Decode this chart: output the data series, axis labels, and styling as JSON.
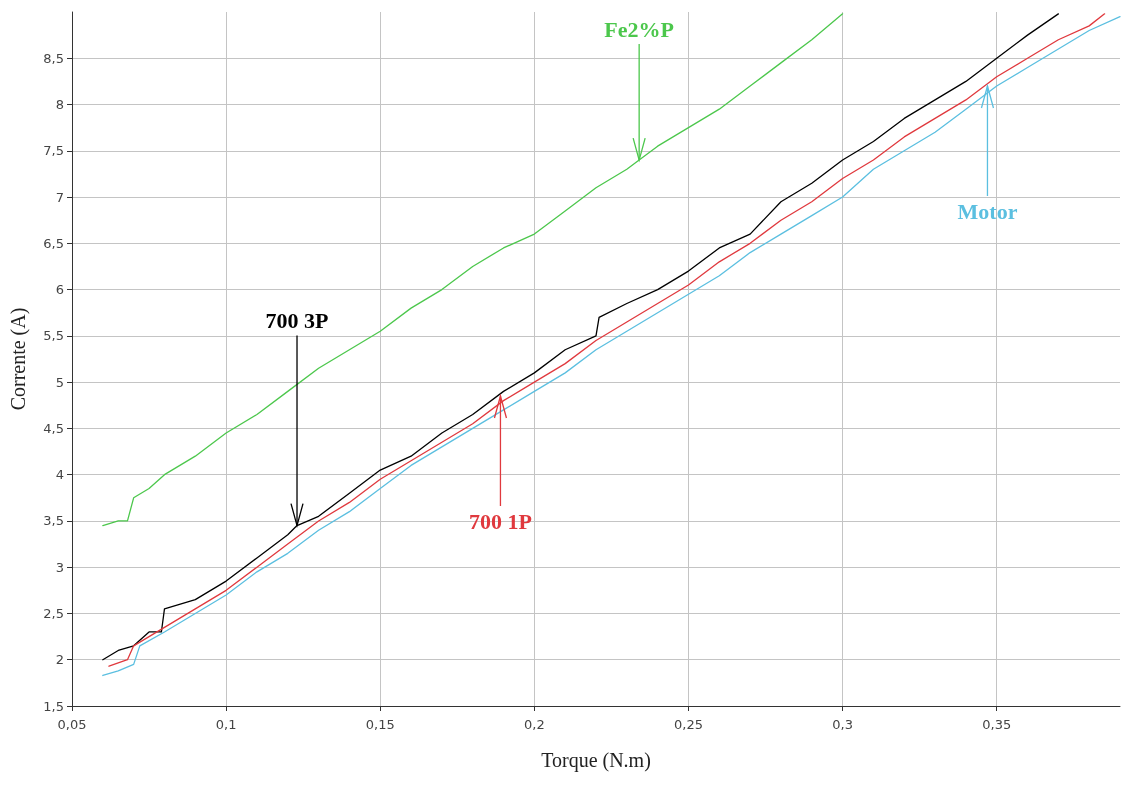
{
  "chart_data": {
    "type": "line",
    "xlabel": "Torque (N.m)",
    "ylabel": "Corrente (A)",
    "xlim": [
      0.05,
      0.39
    ],
    "ylim": [
      1.5,
      9
    ],
    "xticks": [
      {
        "value": 0.05,
        "label": "0,05"
      },
      {
        "value": 0.1,
        "label": "0,1"
      },
      {
        "value": 0.15,
        "label": "0,15"
      },
      {
        "value": 0.2,
        "label": "0,2"
      },
      {
        "value": 0.25,
        "label": "0,25"
      },
      {
        "value": 0.3,
        "label": "0,3"
      },
      {
        "value": 0.35,
        "label": "0,35"
      }
    ],
    "yticks": [
      {
        "value": 1.5,
        "label": "1,5"
      },
      2,
      {
        "value": 2.5,
        "label": "2,5"
      },
      3,
      {
        "value": 3.5,
        "label": "3,5"
      },
      4,
      {
        "value": 4.5,
        "label": "4,5"
      },
      5,
      {
        "value": 5.5,
        "label": "5,5"
      },
      6,
      {
        "value": 6.5,
        "label": "6,5"
      },
      7,
      {
        "value": 7.5,
        "label": "7,5"
      },
      8,
      {
        "value": 8.5,
        "label": "8,5"
      }
    ],
    "grid": true,
    "marker": "none",
    "line_style": "solid",
    "series": [
      {
        "color": "#000000",
        "x": [
          0.06,
          0.065,
          0.07,
          0.075,
          0.079,
          0.08,
          0.09,
          0.1,
          0.11,
          0.12,
          0.123,
          0.13,
          0.14,
          0.15,
          0.16,
          0.17,
          0.18,
          0.19,
          0.2,
          0.21,
          0.22,
          0.221,
          0.23,
          0.24,
          0.25,
          0.26,
          0.27,
          0.28,
          0.29,
          0.3,
          0.31,
          0.32,
          0.33,
          0.34,
          0.35,
          0.36,
          0.37
        ],
        "values": [
          2.0,
          2.1,
          2.15,
          2.3,
          2.3,
          2.55,
          2.65,
          2.85,
          3.1,
          3.35,
          3.45,
          3.55,
          3.8,
          4.05,
          4.2,
          4.45,
          4.65,
          4.9,
          5.1,
          5.35,
          5.5,
          5.7,
          5.85,
          6.0,
          6.2,
          6.45,
          6.6,
          6.95,
          7.15,
          7.4,
          7.6,
          7.85,
          8.05,
          8.25,
          8.5,
          8.75,
          8.98
        ]
      },
      {
        "color": "#e0393e",
        "x": [
          0.062,
          0.068,
          0.07,
          0.08,
          0.09,
          0.1,
          0.11,
          0.12,
          0.13,
          0.14,
          0.15,
          0.16,
          0.17,
          0.18,
          0.19,
          0.2,
          0.21,
          0.22,
          0.23,
          0.24,
          0.25,
          0.26,
          0.27,
          0.28,
          0.29,
          0.3,
          0.31,
          0.32,
          0.33,
          0.34,
          0.35,
          0.36,
          0.37,
          0.38,
          0.385
        ],
        "values": [
          1.93,
          2.0,
          2.15,
          2.35,
          2.55,
          2.75,
          3.0,
          3.25,
          3.5,
          3.7,
          3.95,
          4.15,
          4.35,
          4.55,
          4.8,
          5.0,
          5.2,
          5.45,
          5.65,
          5.85,
          6.05,
          6.3,
          6.5,
          6.75,
          6.95,
          7.2,
          7.4,
          7.65,
          7.85,
          8.05,
          8.3,
          8.5,
          8.7,
          8.85,
          8.98
        ]
      },
      {
        "color": "#4cc74c",
        "x": [
          0.06,
          0.065,
          0.068,
          0.07,
          0.075,
          0.08,
          0.09,
          0.1,
          0.11,
          0.12,
          0.13,
          0.14,
          0.15,
          0.16,
          0.17,
          0.18,
          0.19,
          0.2,
          0.21,
          0.22,
          0.23,
          0.234,
          0.24,
          0.25,
          0.26,
          0.27,
          0.28,
          0.29,
          0.3
        ],
        "values": [
          3.45,
          3.5,
          3.5,
          3.75,
          3.85,
          4.0,
          4.2,
          4.45,
          4.65,
          4.9,
          5.15,
          5.35,
          5.55,
          5.8,
          6.0,
          6.25,
          6.45,
          6.6,
          6.85,
          7.1,
          7.3,
          7.4,
          7.55,
          7.75,
          7.95,
          8.2,
          8.45,
          8.7,
          8.98
        ]
      },
      {
        "color": "#5bbfe0",
        "x": [
          0.06,
          0.065,
          0.07,
          0.072,
          0.08,
          0.09,
          0.1,
          0.11,
          0.12,
          0.13,
          0.14,
          0.15,
          0.16,
          0.17,
          0.18,
          0.19,
          0.2,
          0.21,
          0.22,
          0.23,
          0.24,
          0.25,
          0.26,
          0.27,
          0.28,
          0.29,
          0.3,
          0.31,
          0.32,
          0.33,
          0.34,
          0.35,
          0.36,
          0.37,
          0.38,
          0.39
        ],
        "values": [
          1.83,
          1.88,
          1.95,
          2.15,
          2.3,
          2.5,
          2.7,
          2.95,
          3.15,
          3.4,
          3.6,
          3.85,
          4.1,
          4.3,
          4.5,
          4.7,
          4.9,
          5.1,
          5.35,
          5.55,
          5.75,
          5.95,
          6.15,
          6.4,
          6.6,
          6.8,
          7.0,
          7.3,
          7.5,
          7.7,
          7.95,
          8.2,
          8.4,
          8.6,
          8.8,
          8.95
        ]
      }
    ],
    "annotations": [
      {
        "text": "700 3P",
        "x": 0.123,
        "y": 3.45
      },
      {
        "text": "700 1P",
        "x": 0.189,
        "y": 4.85
      },
      {
        "text": "Fe2%P",
        "x": 0.234,
        "y": 7.4
      },
      {
        "text": "Motor",
        "x": 0.347,
        "y": 8.2
      }
    ]
  }
}
